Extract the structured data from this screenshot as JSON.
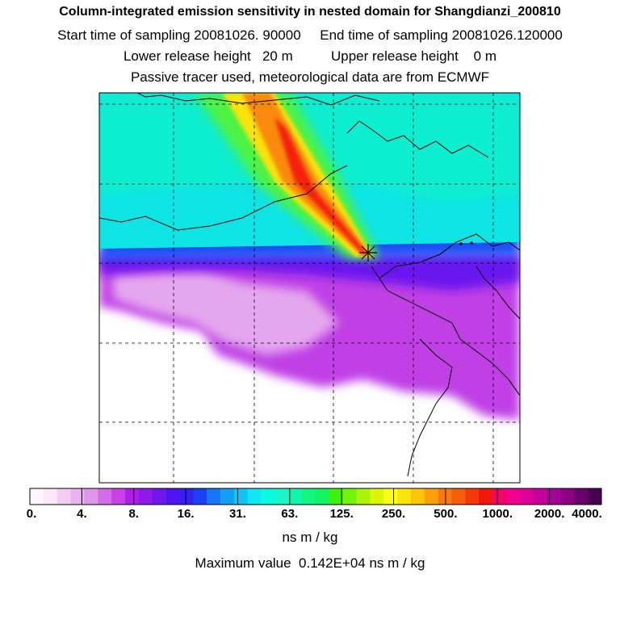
{
  "header": {
    "title": "Column-integrated emission sensitivity in nested domain for Shangdianzi_200810",
    "line1": "Start time of sampling 20081026. 90000     End time of sampling 20081026.120000",
    "line2": "Lower release height   20 m          Upper release height    0 m",
    "line3": "Passive tracer used, meteorological data are from ECMWF"
  },
  "colorbar": {
    "tick_labels": [
      "0.",
      "4.",
      "8.",
      "16.",
      "31.",
      "63.",
      "125.",
      "250.",
      "500.",
      "1000.",
      "2000.",
      "4000."
    ],
    "colors": [
      "#fff5fd",
      "#fbe6fa",
      "#f4ccf3",
      "#eab3ef",
      "#e095ea",
      "#d46be7",
      "#c840e6",
      "#b01ce8",
      "#9118ea",
      "#6f16ee",
      "#4f14f1",
      "#3520f3",
      "#1a40f7",
      "#1476f7",
      "#12a0f6",
      "#0ec5f6",
      "#0ee8f2",
      "#06fde2",
      "#1af7c8",
      "#0ef7aa",
      "#10f780",
      "#10f65c",
      "#3ef30a",
      "#74f40a",
      "#a9f50a",
      "#dcf60a",
      "#fdff12",
      "#fde40d",
      "#fcc40a",
      "#fb9f0a",
      "#f9790a",
      "#f75c0a",
      "#f5380a",
      "#f4150d",
      "#f5006b",
      "#f1008f",
      "#e0009b",
      "#c6009c",
      "#a8009a",
      "#8d0083",
      "#6a006e",
      "#4a0050"
    ],
    "units": "ns m / kg",
    "max_text": "Maximum value  0.142E+04 ns m / kg"
  },
  "map": {
    "receptor_marker": "asterisk"
  }
}
